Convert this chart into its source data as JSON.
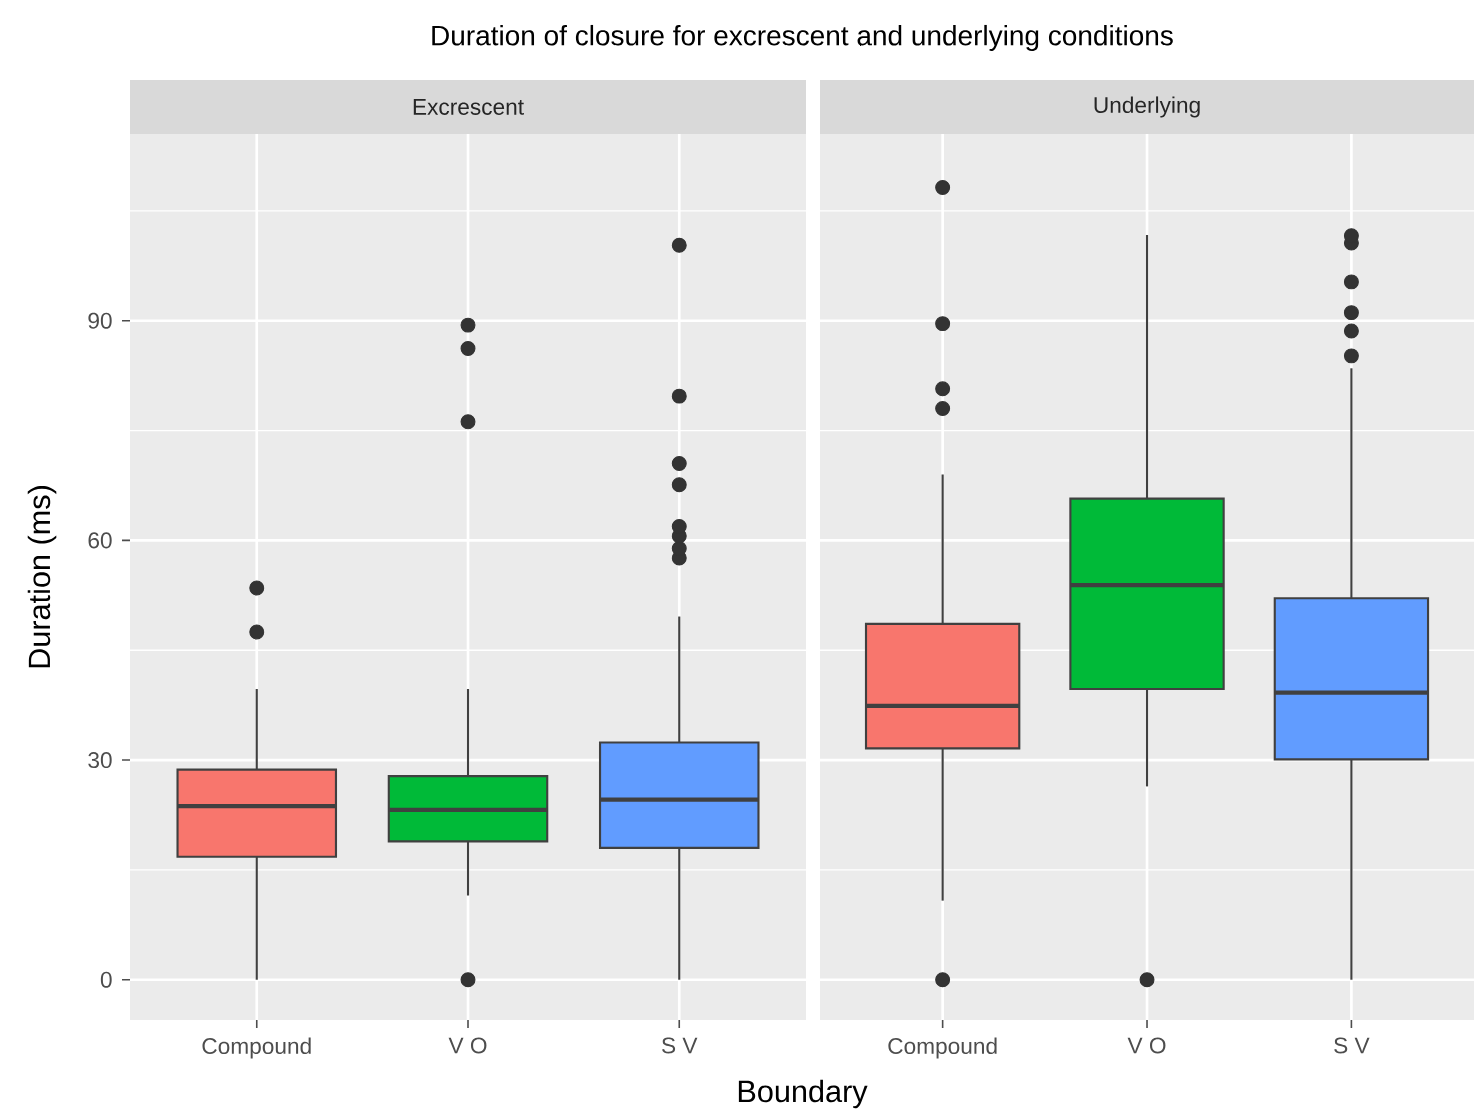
{
  "chart_data": [
    {
      "type": "box",
      "title": "Duration of closure for excrescent and underlying conditions",
      "subtitle": "Excrescent",
      "xlabel": "Boundary",
      "ylabel": "Duration (ms)",
      "categories": [
        "Compound",
        "V O",
        "S V"
      ],
      "colors": [
        "#f8766d",
        "#00ba38",
        "#619cff"
      ],
      "ylim": [
        -5.5,
        115.5
      ],
      "yticks": [
        0,
        30,
        60,
        90
      ],
      "grid": true,
      "boxes": [
        {
          "low": 0,
          "q1": 16.8,
          "median": 23.7,
          "q3": 28.7,
          "high": 39.7,
          "outliers": [
            47.5,
            53.5
          ]
        },
        {
          "low": 11.5,
          "q1": 18.9,
          "median": 23.2,
          "q3": 27.8,
          "high": 39.7,
          "outliers": [
            0,
            76.2,
            86.2,
            89.4
          ]
        },
        {
          "low": 0,
          "q1": 18.0,
          "median": 24.6,
          "q3": 32.4,
          "high": 49.6,
          "outliers": [
            57.6,
            58.9,
            60.6,
            61.9,
            67.6,
            70.5,
            79.7,
            100.3
          ]
        }
      ]
    },
    {
      "type": "box",
      "subtitle": "Underlying",
      "categories": [
        "Compound",
        "V O",
        "S V"
      ],
      "colors": [
        "#f8766d",
        "#00ba38",
        "#619cff"
      ],
      "ylim": [
        -5.5,
        115.5
      ],
      "yticks": [
        0,
        30,
        60,
        90
      ],
      "grid": true,
      "tick_labels": "x",
      "boxes": [
        {
          "low": 10.8,
          "q1": 31.6,
          "median": 37.4,
          "q3": 48.6,
          "high": 69.0,
          "outliers": [
            0,
            78.0,
            80.7,
            89.6,
            108.2
          ]
        },
        {
          "low": 26.4,
          "q1": 39.7,
          "median": 53.9,
          "q3": 65.7,
          "high": 101.7,
          "outliers": [
            0
          ]
        },
        {
          "low": 0,
          "q1": 30.1,
          "median": 39.2,
          "q3": 52.1,
          "high": 83.5,
          "outliers": [
            85.2,
            88.6,
            91.1,
            95.3,
            100.6,
            101.6
          ]
        }
      ]
    }
  ]
}
